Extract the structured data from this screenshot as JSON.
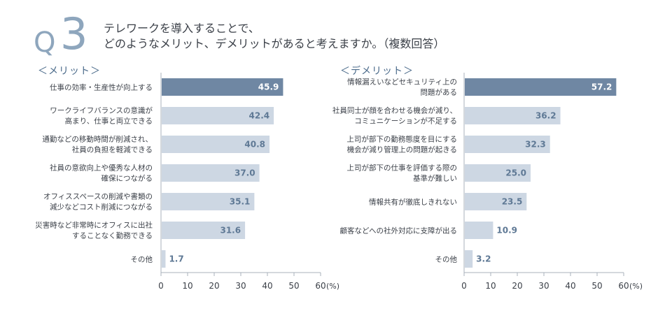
{
  "question": {
    "letter": "Q",
    "number": "3",
    "line1": "テレワークを導入することで、",
    "line2": "どのようなメリット、デメリットがあると考えますか。（複数回答）"
  },
  "chart_data": [
    {
      "type": "bar",
      "title": "＜メリット＞",
      "orientation": "horizontal",
      "categories": [
        [
          "仕事の効率・生産性が向上する"
        ],
        [
          "ワークライフバランスの意識が",
          "高まり、仕事と両立できる"
        ],
        [
          "通勤などの移動時間が削減され、",
          "社員の負担を軽減できる"
        ],
        [
          "社員の意欲向上や優秀な人材の",
          "確保につながる"
        ],
        [
          "オフィススペースの削減や書類の",
          "減少などコスト削減につながる"
        ],
        [
          "災害時など非常時にオフィスに出社",
          "することなく勤務できる"
        ],
        [
          "その他"
        ]
      ],
      "values": [
        45.9,
        42.4,
        40.8,
        37.0,
        35.1,
        31.6,
        1.7
      ],
      "value_labels": [
        "45.9",
        "42.4",
        "40.8",
        "37.0",
        "35.1",
        "31.6",
        "1.7"
      ],
      "highlight_index": 0,
      "xlim": [
        0,
        60
      ],
      "xticks": [
        "0",
        "10",
        "20",
        "30",
        "40",
        "50",
        "60"
      ],
      "unit": "(%)"
    },
    {
      "type": "bar",
      "title": "＜デメリット＞",
      "orientation": "horizontal",
      "categories": [
        [
          "情報漏えいなどセキュリティ上の",
          "問題がある"
        ],
        [
          "社員同士が顔を合わせる機会が減り、",
          "コミュニケーションが不足する"
        ],
        [
          "上司が部下の勤務態度を目にする",
          "機会が減り管理上の問題が起きる"
        ],
        [
          "上司が部下の仕事を評価する際の",
          "基準が難しい"
        ],
        [
          "情報共有が徹底しきれない"
        ],
        [
          "顧客などへの社外対応に支障が出る"
        ],
        [
          "その他"
        ]
      ],
      "values": [
        57.2,
        36.2,
        32.3,
        25.0,
        23.5,
        10.9,
        3.2
      ],
      "value_labels": [
        "57.2",
        "36.2",
        "32.3",
        "25.0",
        "23.5",
        "10.9",
        "3.2"
      ],
      "highlight_index": 0,
      "xlim": [
        0,
        60
      ],
      "xticks": [
        "0",
        "10",
        "20",
        "30",
        "40",
        "50",
        "60"
      ],
      "unit": "(%)"
    }
  ],
  "colors": {
    "highlight_bar": "#6f87a3",
    "bar": "#cdd7e3",
    "highlight_value": "#ffffff",
    "value": "#5f7995",
    "axis": "#a9b1bb",
    "label": "#3a3f47"
  }
}
